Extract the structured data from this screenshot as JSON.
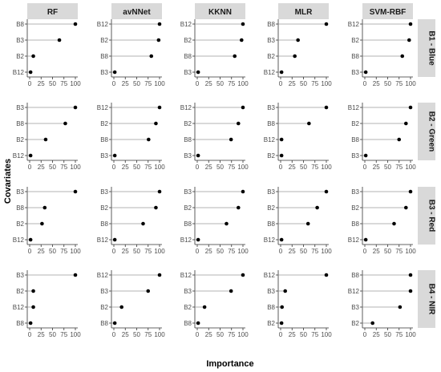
{
  "chart_data": {
    "type": "lollipop",
    "xlabel": "Importance",
    "ylabel": "Covariates",
    "xlim": [
      0,
      100
    ],
    "x_ticks": [
      0,
      25,
      50,
      75,
      100
    ],
    "grid": false,
    "columns": [
      "RF",
      "avNNet",
      "KKNN",
      "MLR",
      "SVM-RBF"
    ],
    "rows": [
      "B1 - Blue",
      "B2 - Green",
      "B3 - Red",
      "B4 - NIR"
    ],
    "panels": [
      [
        {
          "categories": [
            "B8",
            "B3",
            "B2",
            "B12"
          ],
          "values": [
            100,
            65,
            8,
            2
          ]
        },
        {
          "categories": [
            "B12",
            "B2",
            "B8",
            "B3"
          ],
          "values": [
            100,
            98,
            82,
            2
          ]
        },
        {
          "categories": [
            "B12",
            "B2",
            "B8",
            "B3"
          ],
          "values": [
            100,
            97,
            82,
            2
          ]
        },
        {
          "categories": [
            "B8",
            "B3",
            "B2",
            "B12"
          ],
          "values": [
            100,
            38,
            31,
            2
          ]
        },
        {
          "categories": [
            "B12",
            "B2",
            "B8",
            "B3"
          ],
          "values": [
            100,
            97,
            82,
            2
          ]
        }
      ],
      [
        {
          "categories": [
            "B3",
            "B8",
            "B2",
            "B12"
          ],
          "values": [
            100,
            78,
            35,
            2
          ]
        },
        {
          "categories": [
            "B12",
            "B2",
            "B8",
            "B3"
          ],
          "values": [
            100,
            92,
            76,
            2
          ]
        },
        {
          "categories": [
            "B12",
            "B2",
            "B8",
            "B3"
          ],
          "values": [
            100,
            90,
            74,
            2
          ]
        },
        {
          "categories": [
            "B3",
            "B8",
            "B12",
            "B2"
          ],
          "values": [
            100,
            62,
            2,
            2
          ]
        },
        {
          "categories": [
            "B12",
            "B2",
            "B8",
            "B3"
          ],
          "values": [
            100,
            90,
            75,
            2
          ]
        }
      ],
      [
        {
          "categories": [
            "B3",
            "B8",
            "B2",
            "B12"
          ],
          "values": [
            100,
            33,
            27,
            2
          ]
        },
        {
          "categories": [
            "B3",
            "B2",
            "B8",
            "B12"
          ],
          "values": [
            100,
            92,
            64,
            2
          ]
        },
        {
          "categories": [
            "B3",
            "B2",
            "B8",
            "B12"
          ],
          "values": [
            100,
            90,
            64,
            2
          ]
        },
        {
          "categories": [
            "B3",
            "B2",
            "B8",
            "B12"
          ],
          "values": [
            100,
            80,
            60,
            2
          ]
        },
        {
          "categories": [
            "B3",
            "B2",
            "B8",
            "B12"
          ],
          "values": [
            100,
            90,
            64,
            2
          ]
        }
      ],
      [
        {
          "categories": [
            "B3",
            "B2",
            "B12",
            "B8"
          ],
          "values": [
            100,
            8,
            8,
            2
          ]
        },
        {
          "categories": [
            "B12",
            "B3",
            "B2",
            "B8"
          ],
          "values": [
            100,
            75,
            17,
            2
          ]
        },
        {
          "categories": [
            "B12",
            "B3",
            "B2",
            "B8"
          ],
          "values": [
            100,
            74,
            16,
            2
          ]
        },
        {
          "categories": [
            "B12",
            "B3",
            "B8",
            "B2"
          ],
          "values": [
            100,
            10,
            3,
            2
          ]
        },
        {
          "categories": [
            "B8",
            "B12",
            "B3",
            "B2"
          ],
          "values": [
            100,
            100,
            77,
            17
          ]
        }
      ]
    ]
  }
}
